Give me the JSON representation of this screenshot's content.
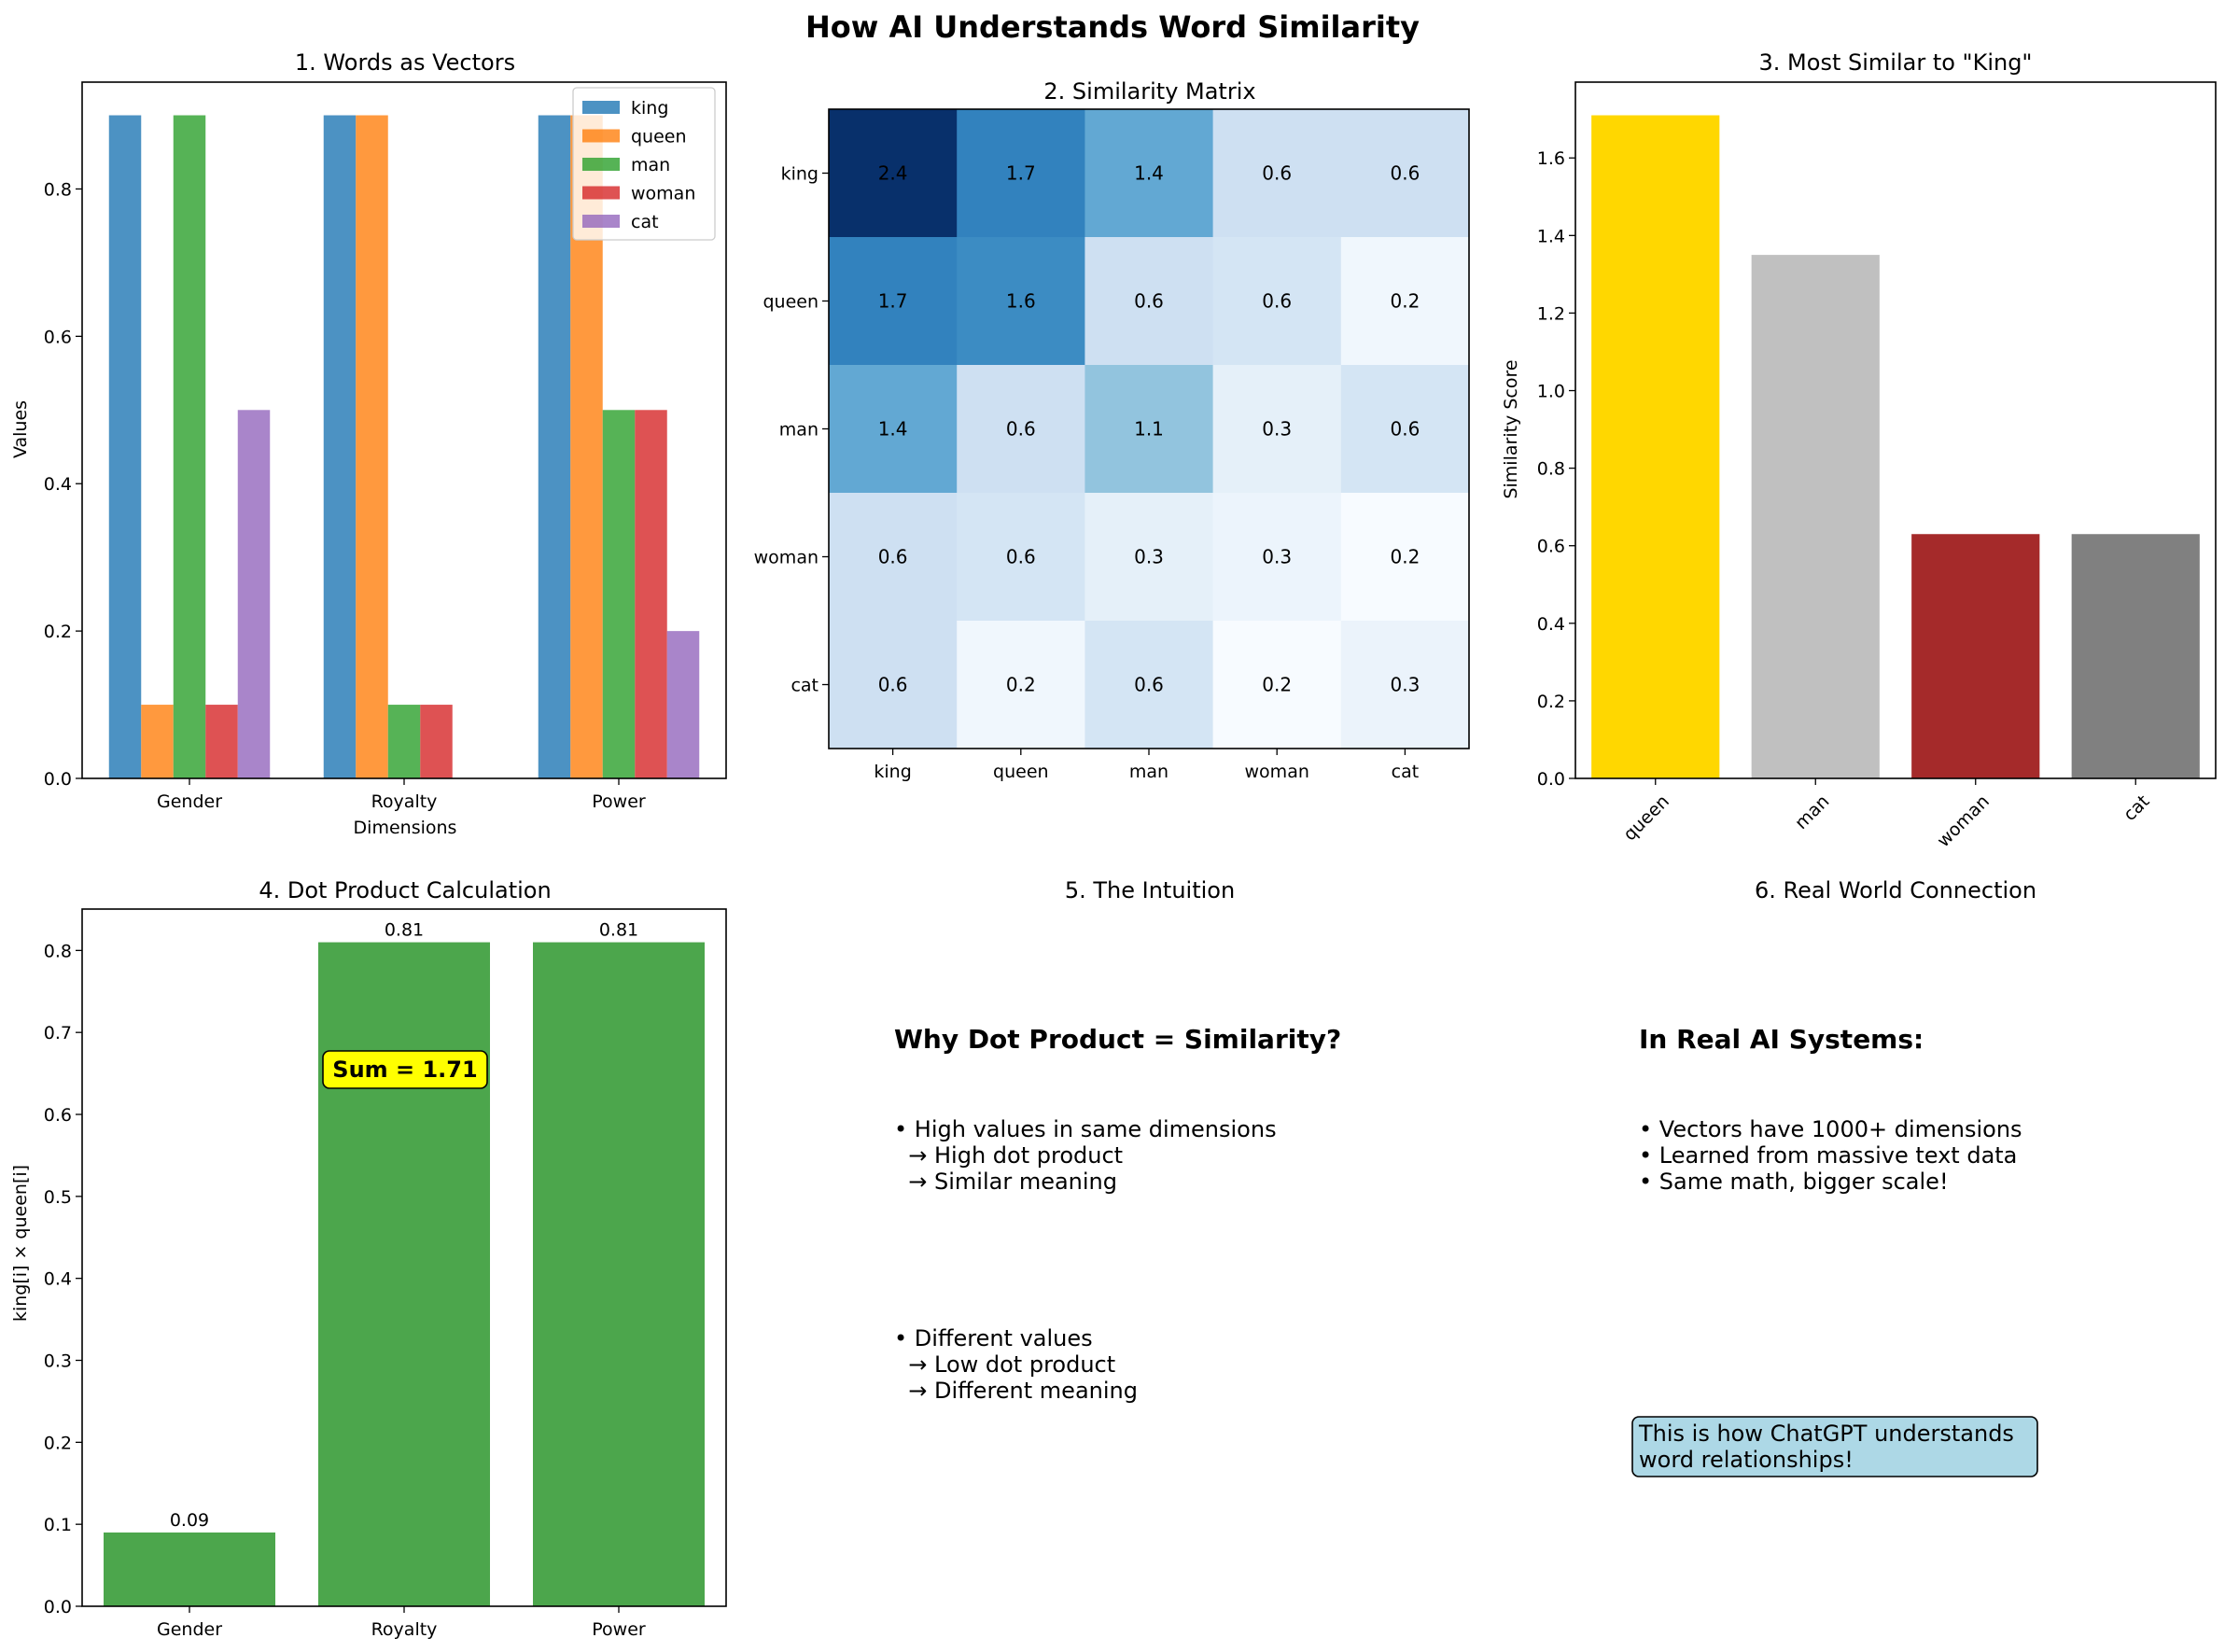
{
  "suptitle": "How AI Understands Word Similarity",
  "colors": {
    "king": "#1f77b4",
    "queen": "#ff7f0e",
    "man": "#2ca02c",
    "woman": "#d62728",
    "cat": "#9467bd",
    "rank": [
      "#ffd700",
      "#c0c0c0",
      "#a52a2a",
      "#808080"
    ],
    "dot": "#4ca64c",
    "sum_box": "#ffff00",
    "note_box": "#add8e6"
  },
  "panel4": {
    "sum_label": "Sum = 1.71"
  },
  "panel5": {
    "title": "5. The Intuition",
    "heading": "Why Dot Product = Similarity?",
    "block1": [
      "• High values in same dimensions",
      "  → High dot product",
      "  → Similar meaning"
    ],
    "block2": [
      "• Different values",
      "  → Low dot product",
      "  → Different meaning"
    ]
  },
  "panel6": {
    "title": "6. Real World Connection",
    "heading": "In Real AI Systems:",
    "bullets": [
      "• Vectors have 1000+ dimensions",
      "• Learned from massive text data",
      "• Same math, bigger scale!"
    ],
    "box": [
      "This is how ChatGPT understands",
      "word relationships!"
    ]
  },
  "chart_data": [
    {
      "type": "bar",
      "title": "1. Words as Vectors",
      "xlabel": "Dimensions",
      "ylabel": "Values",
      "categories": [
        "Gender",
        "Royalty",
        "Power"
      ],
      "series": [
        {
          "name": "king",
          "values": [
            0.9,
            0.9,
            0.9
          ]
        },
        {
          "name": "queen",
          "values": [
            0.1,
            0.9,
            0.9
          ]
        },
        {
          "name": "man",
          "values": [
            0.9,
            0.1,
            0.5
          ]
        },
        {
          "name": "woman",
          "values": [
            0.1,
            0.1,
            0.5
          ]
        },
        {
          "name": "cat",
          "values": [
            0.5,
            0.0,
            0.2
          ]
        }
      ],
      "ylim": [
        0,
        0.945
      ],
      "yticks": [
        "0.0",
        "0.2",
        "0.4",
        "0.6",
        "0.8"
      ],
      "legend": "top-right"
    },
    {
      "type": "heatmap",
      "title": "2. Similarity Matrix",
      "xlabels": [
        "king",
        "queen",
        "man",
        "woman",
        "cat"
      ],
      "ylabels": [
        "king",
        "queen",
        "man",
        "woman",
        "cat"
      ],
      "values": [
        [
          2.43,
          1.71,
          1.35,
          0.63,
          0.63
        ],
        [
          1.71,
          1.63,
          0.63,
          0.55,
          0.23
        ],
        [
          1.35,
          0.63,
          1.07,
          0.35,
          0.55
        ],
        [
          0.63,
          0.55,
          0.35,
          0.27,
          0.15
        ],
        [
          0.63,
          0.23,
          0.55,
          0.15,
          0.29
        ]
      ],
      "labels": [
        [
          "2.4",
          "1.7",
          "1.4",
          "0.6",
          "0.6"
        ],
        [
          "1.7",
          "1.6",
          "0.6",
          "0.6",
          "0.2"
        ],
        [
          "1.4",
          "0.6",
          "1.1",
          "0.3",
          "0.6"
        ],
        [
          "0.6",
          "0.6",
          "0.3",
          "0.3",
          "0.2"
        ],
        [
          "0.6",
          "0.2",
          "0.6",
          "0.2",
          "0.3"
        ]
      ],
      "colormap": "Blues"
    },
    {
      "type": "bar",
      "title": "3. Most Similar to \"King\"",
      "ylabel": "Similarity Score",
      "categories": [
        "queen",
        "man",
        "woman",
        "cat"
      ],
      "values": [
        1.71,
        1.35,
        0.63,
        0.63
      ],
      "ylim": [
        0,
        1.7955
      ],
      "yticks": [
        "0.0",
        "0.2",
        "0.4",
        "0.6",
        "0.8",
        "1.0",
        "1.2",
        "1.4",
        "1.6"
      ]
    },
    {
      "type": "bar",
      "title": "4. Dot Product Calculation",
      "ylabel": "king[i] × queen[i]",
      "categories": [
        "Gender",
        "Royalty",
        "Power"
      ],
      "values": [
        0.09,
        0.81,
        0.81
      ],
      "value_labels": [
        "0.09",
        "0.81",
        "0.81"
      ],
      "ylim": [
        0,
        0.8505
      ],
      "yticks": [
        "0.0",
        "0.1",
        "0.2",
        "0.3",
        "0.4",
        "0.5",
        "0.6",
        "0.7",
        "0.8"
      ]
    }
  ]
}
